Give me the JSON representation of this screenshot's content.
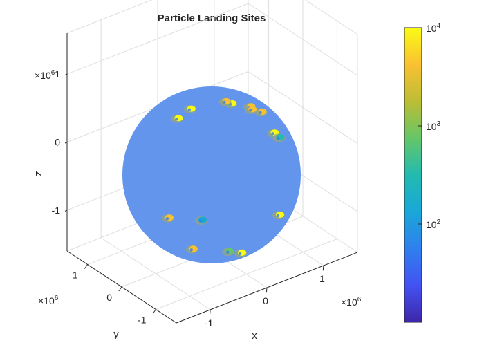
{
  "chart_data": {
    "type": "scatter",
    "title": "Particle Landing Sites",
    "xlabel": "x",
    "ylabel": "y",
    "zlabel": "z",
    "axis_exponent": "×10",
    "axis_exponent_power": "6",
    "xticks": [
      {
        "value": -1,
        "label": "-1"
      },
      {
        "value": 0,
        "label": "0"
      },
      {
        "value": 1,
        "label": "1"
      }
    ],
    "yticks": [
      {
        "value": -1,
        "label": "-1"
      },
      {
        "value": 0,
        "label": "0"
      },
      {
        "value": 1,
        "label": "1"
      }
    ],
    "zticks": [
      {
        "value": -1,
        "label": "-1"
      },
      {
        "value": 0,
        "label": "0"
      },
      {
        "value": 1,
        "label": "1"
      }
    ],
    "xlim": [
      -1.6,
      1.6
    ],
    "ylim": [
      -1.6,
      1.6
    ],
    "zlim": [
      -1.6,
      1.6
    ],
    "grid": true,
    "sphere_color": "#6495ED",
    "colorbar": {
      "scale": "log",
      "range": [
        10,
        10000
      ],
      "ticks": [
        {
          "value": 100,
          "label": "10",
          "exp": "2"
        },
        {
          "value": 1000,
          "label": "10",
          "exp": "3"
        },
        {
          "value": 10000,
          "label": "10",
          "exp": "4"
        }
      ],
      "colormap": [
        "#3E26A8",
        "#4352F3",
        "#2F80EE",
        "#1AA7D8",
        "#23BAB0",
        "#65C668",
        "#BDBD34",
        "#F9C132",
        "#F9FB15"
      ]
    },
    "clusters": [
      {
        "x": -0.55,
        "y": -0.95,
        "z": 1.3,
        "count": 8000
      },
      {
        "x": 0.35,
        "y": -0.85,
        "z": 1.35,
        "count": 9000
      },
      {
        "x": 1.0,
        "y": -0.4,
        "z": 1.15,
        "count": 6000
      },
      {
        "x": -0.6,
        "y": -0.7,
        "z": 0.8,
        "count": 7000
      },
      {
        "x": 0.15,
        "y": -0.55,
        "z": 0.92,
        "count": 5000
      },
      {
        "x": 0.55,
        "y": -0.45,
        "z": 0.92,
        "count": 5000
      },
      {
        "x": 0.5,
        "y": -0.45,
        "z": 0.78,
        "count": 4000
      },
      {
        "x": 0.8,
        "y": -0.4,
        "z": 0.5,
        "count": 9000
      },
      {
        "x": 1.1,
        "y": -0.3,
        "z": 0.55,
        "count": 300
      },
      {
        "x": -0.75,
        "y": -0.75,
        "z": -0.6,
        "count": 6000
      },
      {
        "x": -0.2,
        "y": -0.8,
        "z": -0.5,
        "count": 200
      },
      {
        "x": 1.05,
        "y": -0.2,
        "z": -0.55,
        "count": 8000
      },
      {
        "x": -0.45,
        "y": -0.7,
        "z": -1.35,
        "count": 5000
      },
      {
        "x": 0.3,
        "y": -0.7,
        "z": -1.4,
        "count": 600
      },
      {
        "x": 0.6,
        "y": -0.4,
        "z": -1.45,
        "count": 7000
      }
    ]
  }
}
